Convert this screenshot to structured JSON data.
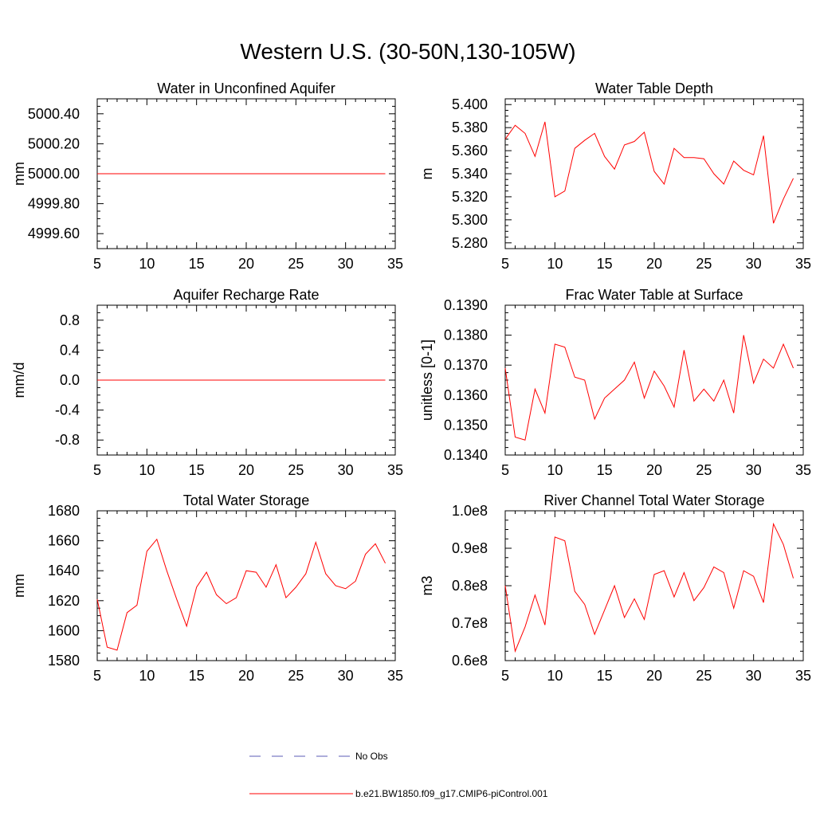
{
  "figure": {
    "title": "Western U.S. (30-50N,130-105W)",
    "line_color": "#ff0000",
    "obs_color": "#5b5bb4"
  },
  "legend": {
    "placement": "bottom-center",
    "entries": [
      {
        "label": "No Obs",
        "style": "dashed",
        "color": "#5b5bb4"
      },
      {
        "label": "b.e21.BW1850.f09_g17.CMIP6-piControl.001",
        "style": "solid",
        "color": "#ff0000"
      }
    ]
  },
  "chart_data": [
    {
      "type": "line",
      "title": "Water in Unconfined Aquifer",
      "ylabel": "mm",
      "xlim": [
        5,
        35
      ],
      "ylim": [
        4999.5,
        5000.5
      ],
      "xticks": [
        5,
        10,
        15,
        20,
        25,
        30,
        35
      ],
      "yticks": [
        4999.6,
        4999.8,
        5000.0,
        5000.2,
        5000.4
      ],
      "ytick_labels": [
        "4999.60",
        "4999.80",
        "5000.00",
        "5000.20",
        "5000.40"
      ],
      "x": [
        5,
        6,
        7,
        8,
        9,
        10,
        11,
        12,
        13,
        14,
        15,
        16,
        17,
        18,
        19,
        20,
        21,
        22,
        23,
        24,
        25,
        26,
        27,
        28,
        29,
        30,
        31,
        32,
        33,
        34
      ],
      "y": [
        5000,
        5000,
        5000,
        5000,
        5000,
        5000,
        5000,
        5000,
        5000,
        5000,
        5000,
        5000,
        5000,
        5000,
        5000,
        5000,
        5000,
        5000,
        5000,
        5000,
        5000,
        5000,
        5000,
        5000,
        5000,
        5000,
        5000,
        5000,
        5000,
        5000
      ]
    },
    {
      "type": "line",
      "title": "Water Table Depth",
      "ylabel": "m",
      "xlim": [
        5,
        35
      ],
      "ylim": [
        5.275,
        5.405
      ],
      "xticks": [
        5,
        10,
        15,
        20,
        25,
        30,
        35
      ],
      "yticks": [
        5.28,
        5.3,
        5.32,
        5.34,
        5.36,
        5.38,
        5.4
      ],
      "ytick_labels": [
        "5.280",
        "5.300",
        "5.320",
        "5.340",
        "5.360",
        "5.380",
        "5.400"
      ],
      "x": [
        5,
        6,
        7,
        8,
        9,
        10,
        11,
        12,
        13,
        14,
        15,
        16,
        17,
        18,
        19,
        20,
        21,
        22,
        23,
        24,
        25,
        26,
        27,
        28,
        29,
        30,
        31,
        32,
        33,
        34
      ],
      "y": [
        5.37,
        5.382,
        5.375,
        5.355,
        5.385,
        5.32,
        5.325,
        5.362,
        5.369,
        5.375,
        5.355,
        5.344,
        5.365,
        5.368,
        5.376,
        5.342,
        5.331,
        5.362,
        5.354,
        5.354,
        5.353,
        5.34,
        5.331,
        5.351,
        5.343,
        5.339,
        5.373,
        5.297,
        5.318,
        5.336
      ]
    },
    {
      "type": "line",
      "title": "Aquifer Recharge Rate",
      "ylabel": "mm/d",
      "xlim": [
        5,
        35
      ],
      "ylim": [
        -1.0,
        1.0
      ],
      "xticks": [
        5,
        10,
        15,
        20,
        25,
        30,
        35
      ],
      "yticks": [
        -0.8,
        -0.4,
        0.0,
        0.4,
        0.8
      ],
      "ytick_labels": [
        "-0.8",
        "-0.4",
        "0.0",
        "0.4",
        "0.8"
      ],
      "x": [
        5,
        6,
        7,
        8,
        9,
        10,
        11,
        12,
        13,
        14,
        15,
        16,
        17,
        18,
        19,
        20,
        21,
        22,
        23,
        24,
        25,
        26,
        27,
        28,
        29,
        30,
        31,
        32,
        33,
        34
      ],
      "y": [
        0,
        0,
        0,
        0,
        0,
        0,
        0,
        0,
        0,
        0,
        0,
        0,
        0,
        0,
        0,
        0,
        0,
        0,
        0,
        0,
        0,
        0,
        0,
        0,
        0,
        0,
        0,
        0,
        0,
        0
      ]
    },
    {
      "type": "line",
      "title": "Frac Water Table at Surface",
      "ylabel": "unitless [0-1]",
      "xlim": [
        5,
        35
      ],
      "ylim": [
        0.134,
        0.139
      ],
      "xticks": [
        5,
        10,
        15,
        20,
        25,
        30,
        35
      ],
      "yticks": [
        0.134,
        0.135,
        0.136,
        0.137,
        0.138,
        0.139
      ],
      "ytick_labels": [
        "0.1340",
        "0.1350",
        "0.1360",
        "0.1370",
        "0.1380",
        "0.1390"
      ],
      "x": [
        5,
        6,
        7,
        8,
        9,
        10,
        11,
        12,
        13,
        14,
        15,
        16,
        17,
        18,
        19,
        20,
        21,
        22,
        23,
        24,
        25,
        26,
        27,
        28,
        29,
        30,
        31,
        32,
        33,
        34
      ],
      "y": [
        0.1369,
        0.1346,
        0.1345,
        0.1362,
        0.1354,
        0.1377,
        0.1376,
        0.1366,
        0.1365,
        0.1352,
        0.1359,
        0.1362,
        0.1365,
        0.1371,
        0.1359,
        0.1368,
        0.1363,
        0.1356,
        0.1375,
        0.1358,
        0.1362,
        0.1358,
        0.1365,
        0.1354,
        0.138,
        0.1364,
        0.1372,
        0.1369,
        0.1377,
        0.1369
      ]
    },
    {
      "type": "line",
      "title": "Total Water Storage",
      "ylabel": "mm",
      "xlim": [
        5,
        35
      ],
      "ylim": [
        1580,
        1680
      ],
      "xticks": [
        5,
        10,
        15,
        20,
        25,
        30,
        35
      ],
      "yticks": [
        1580,
        1600,
        1620,
        1640,
        1660,
        1680
      ],
      "ytick_labels": [
        "1580",
        "1600",
        "1620",
        "1640",
        "1660",
        "1680"
      ],
      "x": [
        5,
        6,
        7,
        8,
        9,
        10,
        11,
        12,
        13,
        14,
        15,
        16,
        17,
        18,
        19,
        20,
        21,
        22,
        23,
        24,
        25,
        26,
        27,
        28,
        29,
        30,
        31,
        32,
        33,
        34
      ],
      "y": [
        1621,
        1589,
        1587,
        1612,
        1617,
        1653,
        1661,
        1640,
        1621,
        1603,
        1629,
        1639,
        1624,
        1618,
        1622,
        1640,
        1639,
        1629,
        1644,
        1622,
        1629,
        1638,
        1659,
        1638,
        1630,
        1628,
        1633,
        1651,
        1658,
        1645
      ]
    },
    {
      "type": "line",
      "title": "River Channel Total Water Storage",
      "ylabel": "m3",
      "xlim": [
        5,
        35
      ],
      "ylim": [
        60000000,
        100000000
      ],
      "xticks": [
        5,
        10,
        15,
        20,
        25,
        30,
        35
      ],
      "yticks": [
        60000000,
        70000000,
        80000000,
        90000000,
        100000000
      ],
      "ytick_labels": [
        "0.6e8",
        "0.7e8",
        "0.8e8",
        "0.9e8",
        "1.0e8"
      ],
      "x": [
        5,
        6,
        7,
        8,
        9,
        10,
        11,
        12,
        13,
        14,
        15,
        16,
        17,
        18,
        19,
        20,
        21,
        22,
        23,
        24,
        25,
        26,
        27,
        28,
        29,
        30,
        31,
        32,
        33,
        34
      ],
      "y": [
        80000000,
        62500000,
        69000000,
        77500000,
        69500000,
        93000000,
        92000000,
        78500000,
        75000000,
        67000000,
        73500000,
        80000000,
        71500000,
        76500000,
        71000000,
        83000000,
        84000000,
        77000000,
        83500000,
        76000000,
        79500000,
        85000000,
        83500000,
        74000000,
        84000000,
        82500000,
        75500000,
        96500000,
        91000000,
        82000000
      ]
    }
  ]
}
